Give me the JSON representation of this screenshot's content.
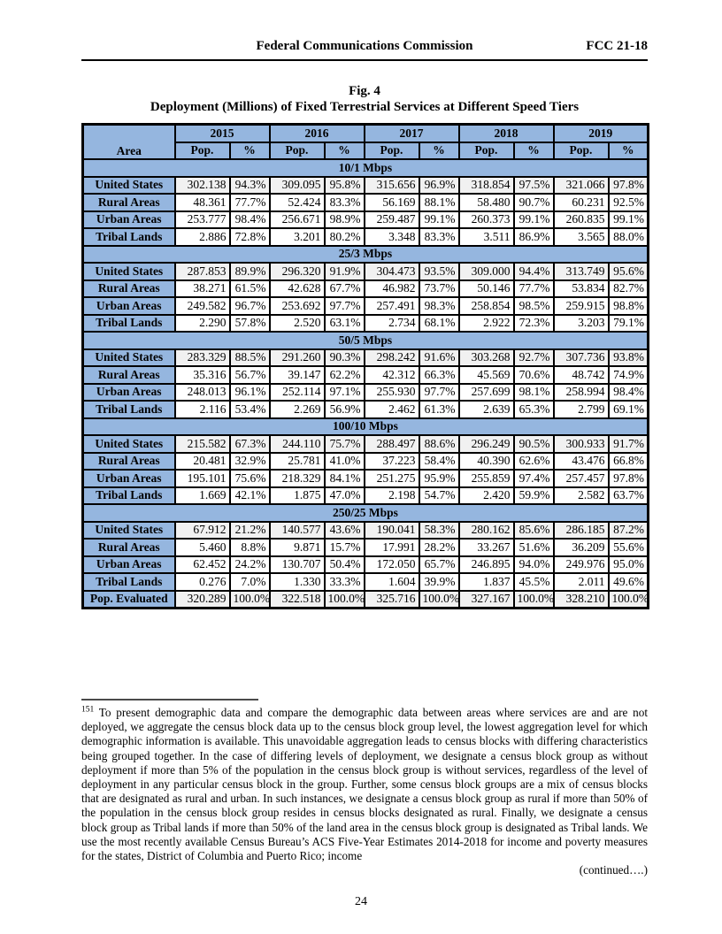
{
  "header": {
    "center": "Federal Communications Commission",
    "right": "FCC 21-18"
  },
  "figure": {
    "label": "Fig. 4",
    "title": "Deployment (Millions) of Fixed Terrestrial Services at Different Speed Tiers"
  },
  "colors": {
    "table_blue": "#95B6DF",
    "shaded_cell": "#F1F1F1",
    "text": "#000000"
  },
  "table": {
    "area_header": "Area",
    "years": [
      "2015",
      "2016",
      "2017",
      "2018",
      "2019"
    ],
    "subheaders": {
      "pop": "Pop.",
      "pct": "%"
    },
    "sections": [
      {
        "tier": "10/1 Mbps",
        "rows": [
          {
            "label": "United States",
            "shaded": true,
            "cells": [
              "302.138",
              "94.3%",
              "309.095",
              "95.8%",
              "315.656",
              "96.9%",
              "318.854",
              "97.5%",
              "321.066",
              "97.8%"
            ]
          },
          {
            "label": "Rural Areas",
            "shaded": false,
            "cells": [
              "48.361",
              "77.7%",
              "52.424",
              "83.3%",
              "56.169",
              "88.1%",
              "58.480",
              "90.7%",
              "60.231",
              "92.5%"
            ]
          },
          {
            "label": "Urban Areas",
            "shaded": false,
            "cells": [
              "253.777",
              "98.4%",
              "256.671",
              "98.9%",
              "259.487",
              "99.1%",
              "260.373",
              "99.1%",
              "260.835",
              "99.1%"
            ]
          },
          {
            "label": "Tribal Lands",
            "shaded": false,
            "cells": [
              "2.886",
              "72.8%",
              "3.201",
              "80.2%",
              "3.348",
              "83.3%",
              "3.511",
              "86.9%",
              "3.565",
              "88.0%"
            ]
          }
        ]
      },
      {
        "tier": "25/3 Mbps",
        "rows": [
          {
            "label": "United States",
            "shaded": true,
            "cells": [
              "287.853",
              "89.9%",
              "296.320",
              "91.9%",
              "304.473",
              "93.5%",
              "309.000",
              "94.4%",
              "313.749",
              "95.6%"
            ]
          },
          {
            "label": "Rural Areas",
            "shaded": false,
            "cells": [
              "38.271",
              "61.5%",
              "42.628",
              "67.7%",
              "46.982",
              "73.7%",
              "50.146",
              "77.7%",
              "53.834",
              "82.7%"
            ]
          },
          {
            "label": "Urban Areas",
            "shaded": false,
            "cells": [
              "249.582",
              "96.7%",
              "253.692",
              "97.7%",
              "257.491",
              "98.3%",
              "258.854",
              "98.5%",
              "259.915",
              "98.8%"
            ]
          },
          {
            "label": "Tribal Lands",
            "shaded": false,
            "cells": [
              "2.290",
              "57.8%",
              "2.520",
              "63.1%",
              "2.734",
              "68.1%",
              "2.922",
              "72.3%",
              "3.203",
              "79.1%"
            ]
          }
        ]
      },
      {
        "tier": "50/5 Mbps",
        "rows": [
          {
            "label": "United States",
            "shaded": true,
            "cells": [
              "283.329",
              "88.5%",
              "291.260",
              "90.3%",
              "298.242",
              "91.6%",
              "303.268",
              "92.7%",
              "307.736",
              "93.8%"
            ]
          },
          {
            "label": "Rural Areas",
            "shaded": false,
            "cells": [
              "35.316",
              "56.7%",
              "39.147",
              "62.2%",
              "42.312",
              "66.3%",
              "45.569",
              "70.6%",
              "48.742",
              "74.9%"
            ]
          },
          {
            "label": "Urban Areas",
            "shaded": false,
            "cells": [
              "248.013",
              "96.1%",
              "252.114",
              "97.1%",
              "255.930",
              "97.7%",
              "257.699",
              "98.1%",
              "258.994",
              "98.4%"
            ]
          },
          {
            "label": "Tribal Lands",
            "shaded": false,
            "cells": [
              "2.116",
              "53.4%",
              "2.269",
              "56.9%",
              "2.462",
              "61.3%",
              "2.639",
              "65.3%",
              "2.799",
              "69.1%"
            ]
          }
        ]
      },
      {
        "tier": "100/10 Mbps",
        "rows": [
          {
            "label": "United States",
            "shaded": true,
            "cells": [
              "215.582",
              "67.3%",
              "244.110",
              "75.7%",
              "288.497",
              "88.6%",
              "296.249",
              "90.5%",
              "300.933",
              "91.7%"
            ]
          },
          {
            "label": "Rural Areas",
            "shaded": false,
            "cells": [
              "20.481",
              "32.9%",
              "25.781",
              "41.0%",
              "37.223",
              "58.4%",
              "40.390",
              "62.6%",
              "43.476",
              "66.8%"
            ]
          },
          {
            "label": "Urban Areas",
            "shaded": false,
            "cells": [
              "195.101",
              "75.6%",
              "218.329",
              "84.1%",
              "251.275",
              "95.9%",
              "255.859",
              "97.4%",
              "257.457",
              "97.8%"
            ]
          },
          {
            "label": "Tribal Lands",
            "shaded": false,
            "cells": [
              "1.669",
              "42.1%",
              "1.875",
              "47.0%",
              "2.198",
              "54.7%",
              "2.420",
              "59.9%",
              "2.582",
              "63.7%"
            ]
          }
        ]
      },
      {
        "tier": "250/25 Mbps",
        "rows": [
          {
            "label": "United States",
            "shaded": true,
            "cells": [
              "67.912",
              "21.2%",
              "140.577",
              "43.6%",
              "190.041",
              "58.3%",
              "280.162",
              "85.6%",
              "286.185",
              "87.2%"
            ]
          },
          {
            "label": "Rural Areas",
            "shaded": false,
            "cells": [
              "5.460",
              "8.8%",
              "9.871",
              "15.7%",
              "17.991",
              "28.2%",
              "33.267",
              "51.6%",
              "36.209",
              "55.6%"
            ]
          },
          {
            "label": "Urban Areas",
            "shaded": false,
            "cells": [
              "62.452",
              "24.2%",
              "130.707",
              "50.4%",
              "172.050",
              "65.7%",
              "246.895",
              "94.0%",
              "249.976",
              "95.0%"
            ]
          },
          {
            "label": "Tribal Lands",
            "shaded": false,
            "cells": [
              "0.276",
              "7.0%",
              "1.330",
              "33.3%",
              "1.604",
              "39.9%",
              "1.837",
              "45.5%",
              "2.011",
              "49.6%"
            ]
          }
        ]
      }
    ],
    "footer_row": {
      "label": "Pop. Evaluated",
      "shaded": true,
      "cells": [
        "320.289",
        "100.0%",
        "322.518",
        "100.0%",
        "325.716",
        "100.0%",
        "327.167",
        "100.0%",
        "328.210",
        "100.0%"
      ]
    }
  },
  "footnote": {
    "marker": "151",
    "text": "To present demographic data and compare the demographic data between areas where services are and are not deployed, we aggregate the census block data up to the census block group level, the lowest aggregation level for which demographic information is available.  This unavoidable aggregation leads to census blocks with differing characteristics being grouped together.  In the case of differing levels of deployment, we designate a census block group as without deployment if more than 5% of the population in the census block group is without services, regardless of the level of deployment in any particular census block in the group.  Further, some census block groups are a mix of census blocks that are designated as rural and urban.  In such instances, we designate a census block group as rural if more than 50% of the population in the census block group resides in census blocks designated as rural.  Finally, we designate a census block group as Tribal lands if more than 50% of the land area in the census block group is designated as Tribal lands.  We use the most recently available Census Bureau’s ACS Five-Year Estimates 2014-2018 for income and poverty measures for the states, District of Columbia and Puerto Rico; income",
    "continued": "(continued….)"
  },
  "page_number": "24"
}
